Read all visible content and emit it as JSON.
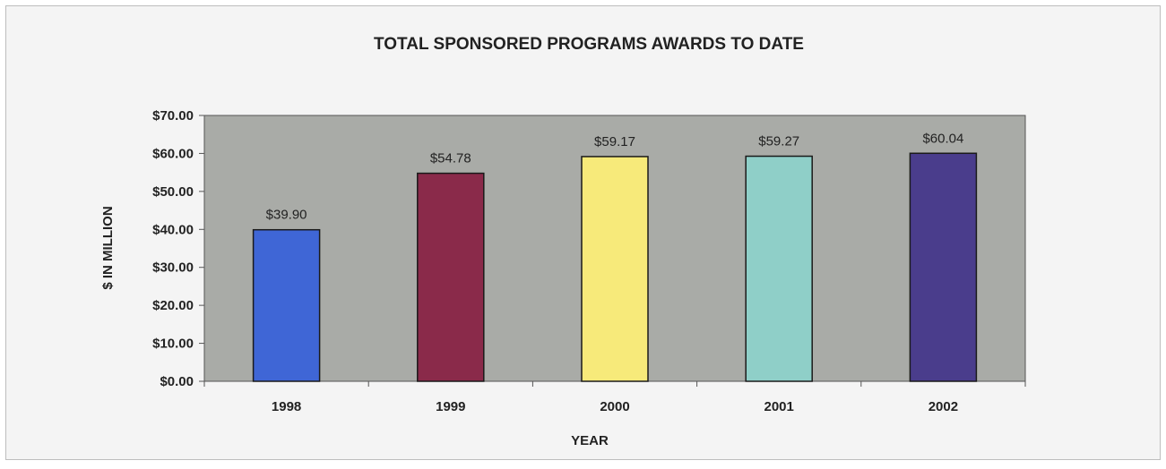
{
  "chart_data": {
    "type": "bar",
    "title": "TOTAL SPONSORED PROGRAMS AWARDS TO DATE",
    "xlabel": "YEAR",
    "ylabel": "$ IN MILLION",
    "categories": [
      "1998",
      "1999",
      "2000",
      "2001",
      "2002"
    ],
    "values": [
      39.9,
      54.78,
      59.17,
      59.27,
      60.04
    ],
    "data_labels": [
      "$39.90",
      "$54.78",
      "$59.17",
      "$59.27",
      "$60.04"
    ],
    "bar_colors": [
      "#3f66d6",
      "#8a2a4a",
      "#f7ea7a",
      "#8fcfc8",
      "#4a3d8c"
    ],
    "ylim": [
      0,
      70
    ],
    "yticks": [
      0,
      10,
      20,
      30,
      40,
      50,
      60,
      70
    ],
    "ytick_labels": [
      "$0.00",
      "$10.00",
      "$20.00",
      "$30.00",
      "$40.00",
      "$50.00",
      "$60.00",
      "$70.00"
    ],
    "grid": false,
    "legend": "none",
    "plot_background": "#a9aba7"
  }
}
